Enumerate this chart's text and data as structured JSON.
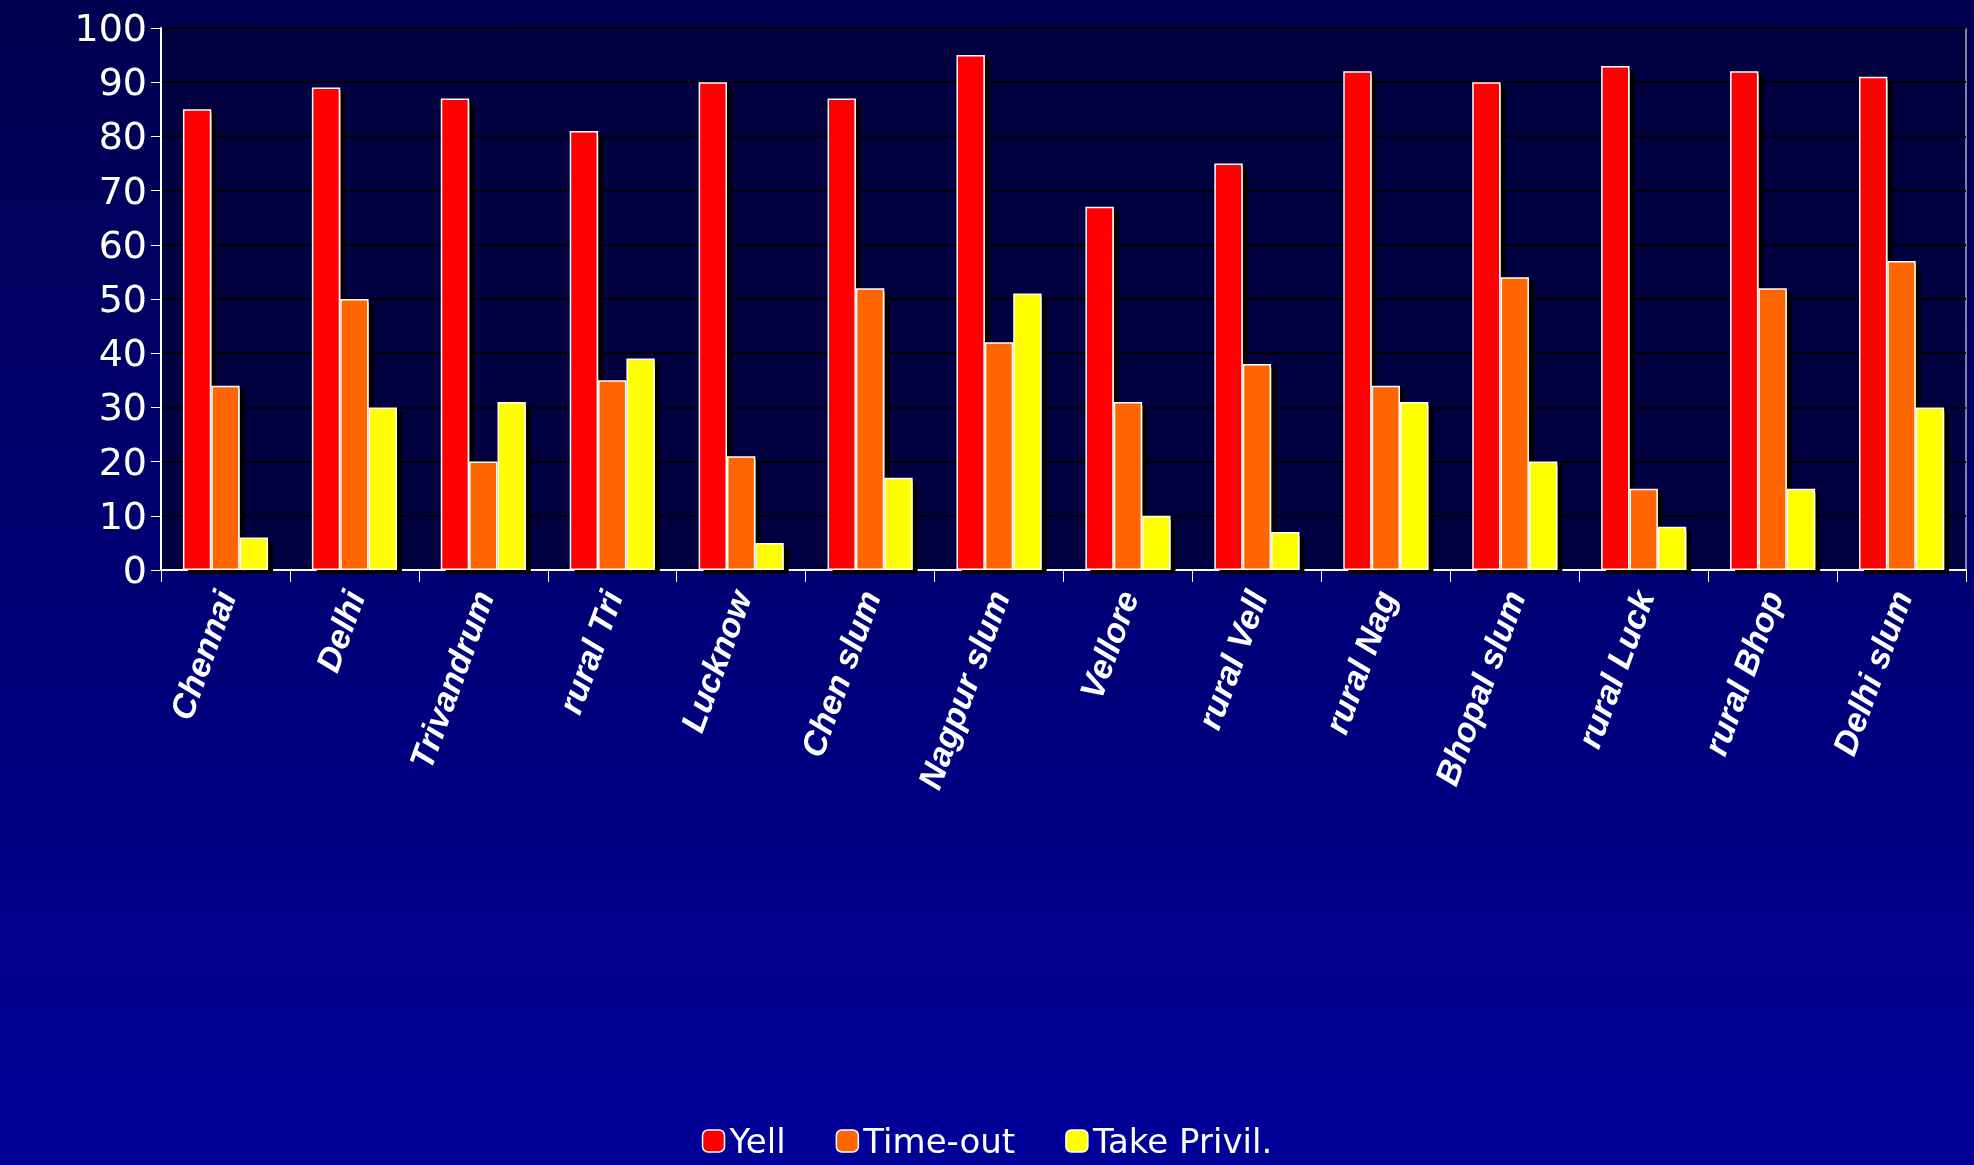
{
  "chart_data": {
    "type": "bar",
    "categories": [
      "Chennai",
      "Delhi",
      "Trivandrum",
      "rural Tri",
      "Lucknow",
      "Chen slum",
      "Nagpur slum",
      "Vellore",
      "rural Vell",
      "rural Nag",
      "Bhopal slum",
      "rural Luck",
      "rural Bhop",
      "Delhi slum"
    ],
    "series": [
      {
        "name": "Yell",
        "color": "#ff0000",
        "values": [
          85,
          89,
          87,
          81,
          90,
          87,
          95,
          67,
          75,
          92,
          90,
          93,
          92,
          91
        ]
      },
      {
        "name": "Time-out",
        "color": "#ff6600",
        "values": [
          34,
          50,
          20,
          35,
          21,
          52,
          42,
          31,
          38,
          34,
          54,
          15,
          52,
          57
        ]
      },
      {
        "name": "Take Privil.",
        "color": "#ffff00",
        "values": [
          6,
          30,
          31,
          39,
          5,
          17,
          51,
          10,
          7,
          31,
          20,
          8,
          15,
          30
        ]
      }
    ],
    "ylim": [
      0,
      100
    ],
    "yticks": [
      0,
      10,
      20,
      30,
      40,
      50,
      60,
      70,
      80,
      90,
      100
    ],
    "grid": "y",
    "legend": "bottom"
  }
}
